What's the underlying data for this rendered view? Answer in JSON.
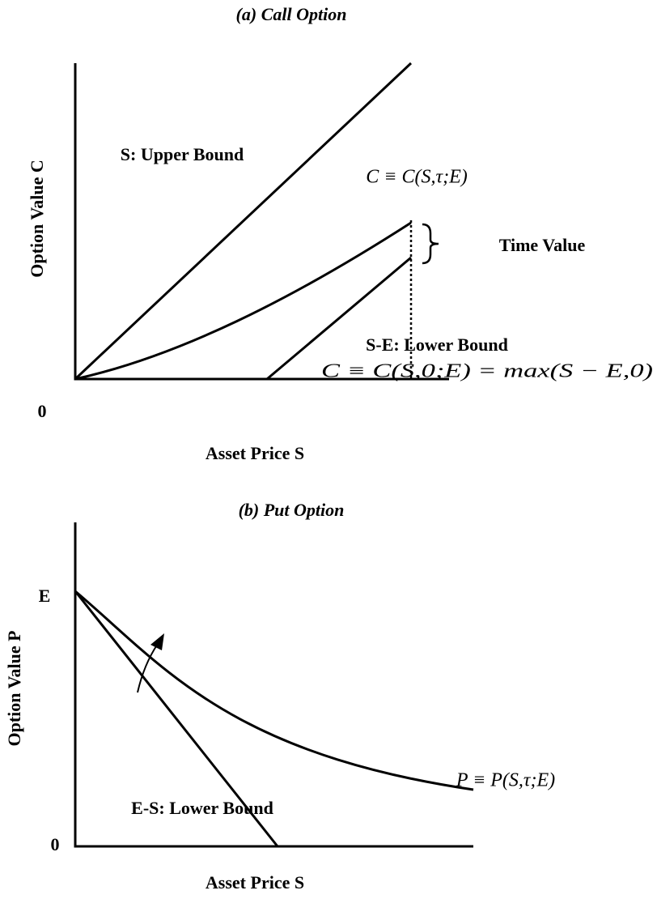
{
  "panel_a": {
    "title": "(a) Call Option",
    "y_axis_label": "Option Value C",
    "x_axis_label": "Asset Price S",
    "origin_label": "0",
    "upper_bound_label": "S: Upper Bound",
    "value_formula": "C ≡ C(S,τ;E)",
    "time_value_label": "Time Value",
    "lower_bound_label": "S-E: Lower Bound",
    "lower_bound_formula": "C ≡ C(S,0;E) = max(S − E,0)"
  },
  "panel_b": {
    "title": "(b) Put Option",
    "y_axis_label": "Option Value P",
    "x_axis_label": "Asset Price S",
    "origin_label": "0",
    "strike_label": "E",
    "value_formula": "P ≡ P(S,τ;E)",
    "lower_bound_label": "E-S: Lower Bound"
  }
}
